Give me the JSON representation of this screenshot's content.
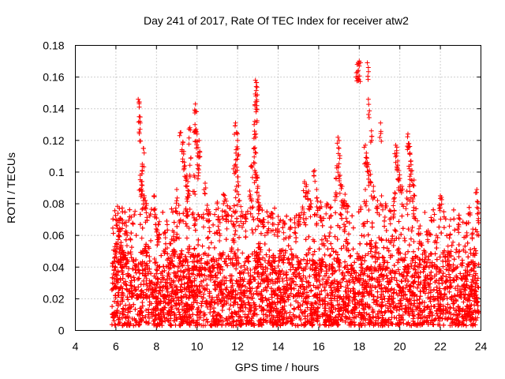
{
  "chart_data": {
    "type": "scatter",
    "title": "Day 241 of 2017, Rate Of TEC Index for receiver atw2",
    "xlabel": "GPS time / hours",
    "ylabel": "ROTI / TECUs",
    "xlim": [
      4,
      24
    ],
    "ylim": [
      0,
      0.18
    ],
    "xticks": [
      "4",
      "6",
      "8",
      "10",
      "12",
      "14",
      "16",
      "18",
      "20",
      "22",
      "24"
    ],
    "yticks": [
      "0",
      "0.02",
      "0.04",
      "0.06",
      "0.08",
      "0.1",
      "0.12",
      "0.14",
      "0.16",
      "0.18"
    ],
    "grid": true,
    "marker": "+",
    "series_color": "#ff0000",
    "series": [
      {
        "name": "ROTI",
        "x_range": [
          5.8,
          23.9
        ],
        "points": [
          [
            7.1,
            0.146
          ],
          [
            7.15,
            0.135
          ],
          [
            7.2,
            0.131
          ],
          [
            7.35,
            0.115
          ],
          [
            7.3,
            0.105
          ],
          [
            7.2,
            0.098
          ],
          [
            7.25,
            0.094
          ],
          [
            7.3,
            0.088
          ],
          [
            7.4,
            0.085
          ],
          [
            7.45,
            0.082
          ],
          [
            7.5,
            0.079
          ],
          [
            6.1,
            0.074
          ],
          [
            6.2,
            0.071
          ],
          [
            5.95,
            0.053
          ],
          [
            6.05,
            0.055
          ],
          [
            6.15,
            0.063
          ],
          [
            7.9,
            0.085
          ],
          [
            8.1,
            0.067
          ],
          [
            8.4,
            0.062
          ],
          [
            8.8,
            0.063
          ],
          [
            9.0,
            0.089
          ],
          [
            9.1,
            0.079
          ],
          [
            9.2,
            0.125
          ],
          [
            9.3,
            0.119
          ],
          [
            9.35,
            0.113
          ],
          [
            9.4,
            0.104
          ],
          [
            9.5,
            0.098
          ],
          [
            9.55,
            0.094
          ],
          [
            9.6,
            0.088
          ],
          [
            9.5,
            0.083
          ],
          [
            9.45,
            0.077
          ],
          [
            9.65,
            0.128
          ],
          [
            9.7,
            0.109
          ],
          [
            9.9,
            0.13
          ],
          [
            9.95,
            0.127
          ],
          [
            9.92,
            0.143
          ],
          [
            10.0,
            0.124
          ],
          [
            10.1,
            0.12
          ],
          [
            10.05,
            0.112
          ],
          [
            10.1,
            0.104
          ],
          [
            9.85,
            0.098
          ],
          [
            10.4,
            0.093
          ],
          [
            10.5,
            0.079
          ],
          [
            10.6,
            0.075
          ],
          [
            11.0,
            0.081
          ],
          [
            11.1,
            0.07
          ],
          [
            11.3,
            0.086
          ],
          [
            11.4,
            0.083
          ],
          [
            11.5,
            0.073
          ],
          [
            11.9,
            0.131
          ],
          [
            11.95,
            0.125
          ],
          [
            12.0,
            0.12
          ],
          [
            11.92,
            0.112
          ],
          [
            11.85,
            0.104
          ],
          [
            12.0,
            0.097
          ],
          [
            11.95,
            0.091
          ],
          [
            12.1,
            0.082
          ],
          [
            12.2,
            0.075
          ],
          [
            11.8,
            0.067
          ],
          [
            12.4,
            0.071
          ],
          [
            12.6,
            0.088
          ],
          [
            12.7,
            0.083
          ],
          [
            12.88,
            0.158
          ],
          [
            12.92,
            0.154
          ],
          [
            12.9,
            0.148
          ],
          [
            12.95,
            0.142
          ],
          [
            12.85,
            0.132
          ],
          [
            12.9,
            0.124
          ],
          [
            12.8,
            0.115
          ],
          [
            12.85,
            0.101
          ],
          [
            12.95,
            0.098
          ],
          [
            13.0,
            0.091
          ],
          [
            13.05,
            0.085
          ],
          [
            13.1,
            0.079
          ],
          [
            12.7,
            0.104
          ],
          [
            13.3,
            0.07
          ],
          [
            13.5,
            0.072
          ],
          [
            13.7,
            0.074
          ],
          [
            14.0,
            0.072
          ],
          [
            14.3,
            0.068
          ],
          [
            14.6,
            0.07
          ],
          [
            15.0,
            0.073
          ],
          [
            15.2,
            0.078
          ],
          [
            15.3,
            0.094
          ],
          [
            15.4,
            0.092
          ],
          [
            15.5,
            0.088
          ],
          [
            15.6,
            0.082
          ],
          [
            15.8,
            0.101
          ],
          [
            15.9,
            0.089
          ],
          [
            16.1,
            0.081
          ],
          [
            16.4,
            0.08
          ],
          [
            16.6,
            0.078
          ],
          [
            16.95,
            0.122
          ],
          [
            17.0,
            0.115
          ],
          [
            16.9,
            0.104
          ],
          [
            17.05,
            0.098
          ],
          [
            17.1,
            0.092
          ],
          [
            16.85,
            0.087
          ],
          [
            17.2,
            0.082
          ],
          [
            17.3,
            0.086
          ],
          [
            17.4,
            0.079
          ],
          [
            17.9,
            0.168
          ],
          [
            17.95,
            0.169
          ],
          [
            18.0,
            0.17
          ],
          [
            18.0,
            0.167
          ],
          [
            18.4,
            0.169
          ],
          [
            18.45,
            0.146
          ],
          [
            18.3,
            0.117
          ],
          [
            18.35,
            0.112
          ],
          [
            18.4,
            0.106
          ],
          [
            18.5,
            0.101
          ],
          [
            18.55,
            0.094
          ],
          [
            18.3,
            0.089
          ],
          [
            18.6,
            0.126
          ],
          [
            18.7,
            0.091
          ],
          [
            18.9,
            0.082
          ],
          [
            19.05,
            0.131
          ],
          [
            19.1,
            0.085
          ],
          [
            19.3,
            0.08
          ],
          [
            19.5,
            0.076
          ],
          [
            19.8,
            0.117
          ],
          [
            19.85,
            0.112
          ],
          [
            19.9,
            0.107
          ],
          [
            19.95,
            0.101
          ],
          [
            20.0,
            0.096
          ],
          [
            20.1,
            0.091
          ],
          [
            19.75,
            0.087
          ],
          [
            19.7,
            0.083
          ],
          [
            20.4,
            0.124
          ],
          [
            20.45,
            0.118
          ],
          [
            20.5,
            0.112
          ],
          [
            20.55,
            0.107
          ],
          [
            20.6,
            0.101
          ],
          [
            20.5,
            0.092
          ],
          [
            20.35,
            0.088
          ],
          [
            20.7,
            0.095
          ],
          [
            20.65,
            0.083
          ],
          [
            21.0,
            0.066
          ],
          [
            21.4,
            0.063
          ],
          [
            21.8,
            0.06
          ],
          [
            22.0,
            0.085
          ],
          [
            22.05,
            0.084
          ],
          [
            22.5,
            0.07
          ],
          [
            22.9,
            0.071
          ],
          [
            23.3,
            0.068
          ],
          [
            23.6,
            0.064
          ],
          [
            23.8,
            0.089
          ],
          [
            23.85,
            0.081
          ]
        ]
      }
    ]
  }
}
